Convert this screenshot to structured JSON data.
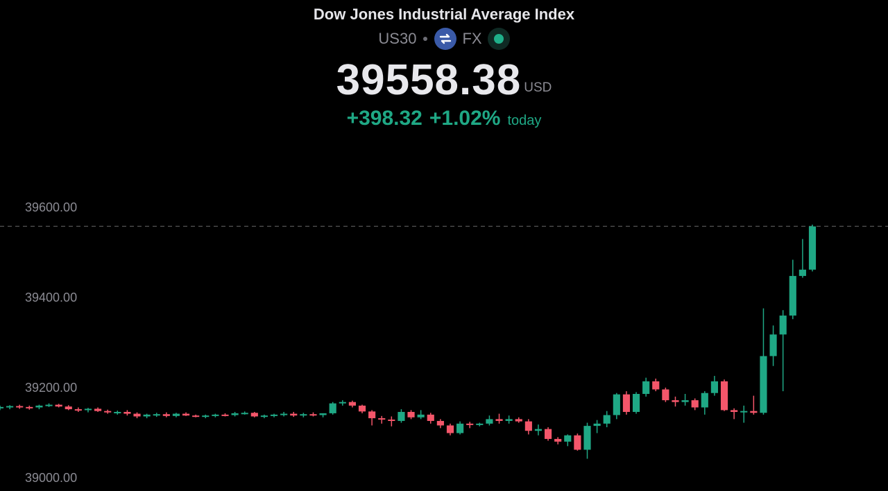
{
  "header": {
    "title": "Dow Jones Industrial Average Index",
    "symbol": "US30",
    "exchange": "FX",
    "price": "39558.38",
    "currency": "USD",
    "change": "+398.32",
    "change_percent": "+1.02%",
    "change_period": "today"
  },
  "colors": {
    "up": "#1fa885",
    "down": "#f4566a",
    "background": "#000000",
    "text_muted": "#8b8b93"
  },
  "icons": {
    "fx_source": "exchange-logo-icon",
    "market_status": "market-open-dot-icon"
  },
  "chart_data": {
    "type": "candlestick",
    "title": "",
    "xlabel": "",
    "ylabel": "",
    "ylim": [
      38975,
      39645
    ],
    "ticks": [
      "39600.00",
      "39400.00",
      "39200.00",
      "39000.00"
    ],
    "tick_values": [
      39600,
      39400,
      39200,
      39000
    ],
    "current_price_line": 39558.38,
    "grid": false,
    "series": [
      {
        "values": [
          [
            39155,
            39160,
            39150,
            39157
          ],
          [
            39157,
            39161,
            39152,
            39159
          ],
          [
            39159,
            39162,
            39153,
            39157
          ],
          [
            39157,
            39160,
            39151,
            39156
          ],
          [
            39156,
            39162,
            39152,
            39160
          ],
          [
            39160,
            39165,
            39157,
            39162
          ],
          [
            39162,
            39164,
            39156,
            39158
          ],
          [
            39158,
            39161,
            39150,
            39152
          ],
          [
            39152,
            39156,
            39146,
            39150
          ],
          [
            39150,
            39155,
            39145,
            39153
          ],
          [
            39153,
            39156,
            39146,
            39148
          ],
          [
            39148,
            39151,
            39142,
            39145
          ],
          [
            39145,
            39149,
            39140,
            39146
          ],
          [
            39146,
            39150,
            39138,
            39142
          ],
          [
            39142,
            39145,
            39132,
            39136
          ],
          [
            39136,
            39142,
            39132,
            39140
          ],
          [
            39140,
            39144,
            39135,
            39141
          ],
          [
            39141,
            39145,
            39134,
            39137
          ],
          [
            39137,
            39144,
            39134,
            39142
          ],
          [
            39142,
            39145,
            39137,
            39138
          ],
          [
            39138,
            39140,
            39134,
            39136
          ],
          [
            39136,
            39140,
            39132,
            39138
          ],
          [
            39138,
            39142,
            39134,
            39140
          ],
          [
            39140,
            39143,
            39136,
            39139
          ],
          [
            39139,
            39146,
            39136,
            39143
          ],
          [
            39143,
            39147,
            39140,
            39144
          ],
          [
            39144,
            39146,
            39134,
            39136
          ],
          [
            39136,
            39140,
            39132,
            39138
          ],
          [
            39138,
            39142,
            39134,
            39140
          ],
          [
            39140,
            39146,
            39136,
            39142
          ],
          [
            39142,
            39146,
            39135,
            39138
          ],
          [
            39138,
            39144,
            39134,
            39141
          ],
          [
            39141,
            39145,
            39136,
            39139
          ],
          [
            39139,
            39143,
            39134,
            39143
          ],
          [
            39143,
            39168,
            39140,
            39165
          ],
          [
            39165,
            39172,
            39160,
            39168
          ],
          [
            39168,
            39171,
            39156,
            39160
          ],
          [
            39160,
            39162,
            39143,
            39147
          ],
          [
            39147,
            39150,
            39116,
            39132
          ],
          [
            39132,
            39137,
            39120,
            39129
          ],
          [
            39129,
            39136,
            39114,
            39126
          ],
          [
            39126,
            39152,
            39122,
            39146
          ],
          [
            39146,
            39150,
            39130,
            39134
          ],
          [
            39134,
            39150,
            39130,
            39140
          ],
          [
            39140,
            39144,
            39120,
            39126
          ],
          [
            39126,
            39130,
            39110,
            39116
          ],
          [
            39116,
            39120,
            39094,
            39099
          ],
          [
            39099,
            39125,
            39096,
            39120
          ],
          [
            39120,
            39124,
            39110,
            39118
          ],
          [
            39118,
            39122,
            39114,
            39120
          ],
          [
            39120,
            39138,
            39116,
            39130
          ],
          [
            39130,
            39142,
            39120,
            39126
          ],
          [
            39126,
            39138,
            39120,
            39130
          ],
          [
            39130,
            39134,
            39122,
            39125
          ],
          [
            39125,
            39130,
            39096,
            39104
          ],
          [
            39104,
            39118,
            39094,
            39108
          ],
          [
            39108,
            39112,
            39082,
            39086
          ],
          [
            39086,
            39090,
            39074,
            39080
          ],
          [
            39080,
            39096,
            39070,
            39094
          ],
          [
            39094,
            39098,
            39060,
            39062
          ],
          [
            39062,
            39122,
            39042,
            39115
          ],
          [
            39115,
            39128,
            39099,
            39120
          ],
          [
            39120,
            39148,
            39112,
            39139
          ],
          [
            39139,
            39188,
            39130,
            39185
          ],
          [
            39185,
            39192,
            39140,
            39146
          ],
          [
            39146,
            39190,
            39142,
            39186
          ],
          [
            39186,
            39222,
            39180,
            39214
          ],
          [
            39214,
            39220,
            39192,
            39196
          ],
          [
            39196,
            39200,
            39168,
            39172
          ],
          [
            39172,
            39180,
            39158,
            39168
          ],
          [
            39168,
            39186,
            39160,
            39172
          ],
          [
            39172,
            39176,
            39150,
            39156
          ],
          [
            39156,
            39192,
            39140,
            39188
          ],
          [
            39188,
            39226,
            39182,
            39214
          ],
          [
            39214,
            39218,
            39148,
            39150
          ],
          [
            39150,
            39154,
            39130,
            39146
          ],
          [
            39146,
            39160,
            39122,
            39148
          ],
          [
            39148,
            39182,
            39140,
            39144
          ],
          [
            39144,
            39376,
            39140,
            39270
          ],
          [
            39270,
            39338,
            39248,
            39318
          ],
          [
            39318,
            39372,
            39192,
            39360
          ],
          [
            39360,
            39484,
            39352,
            39448
          ],
          [
            39448,
            39530,
            39444,
            39462
          ],
          [
            39462,
            39562,
            39458,
            39558
          ]
        ]
      }
    ]
  }
}
